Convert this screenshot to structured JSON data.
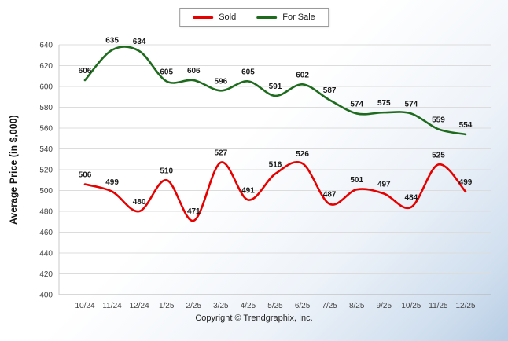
{
  "page": {
    "copyright": "Copyright © Trendgraphix, Inc."
  },
  "legend": {
    "items": [
      {
        "label": "Sold",
        "color": "#e60000"
      },
      {
        "label": "For Sale",
        "color": "#1e6b1e"
      }
    ]
  },
  "chart_data": {
    "type": "line",
    "title": "",
    "xlabel": "",
    "ylabel": "Average Price (in $,000)",
    "categories": [
      "10/24",
      "11/24",
      "12/24",
      "1/25",
      "2/25",
      "3/25",
      "4/25",
      "5/25",
      "6/25",
      "7/25",
      "8/25",
      "9/25",
      "10/25",
      "11/25",
      "12/25"
    ],
    "series": [
      {
        "name": "Sold",
        "color": "#e60000",
        "values": [
          506,
          499,
          480,
          510,
          471,
          527,
          491,
          516,
          526,
          487,
          501,
          497,
          484,
          525,
          499
        ]
      },
      {
        "name": "For Sale",
        "color": "#1e6b1e",
        "values": [
          606,
          635,
          634,
          605,
          606,
          596,
          605,
          591,
          602,
          587,
          574,
          575,
          574,
          559,
          554
        ]
      }
    ],
    "ylim": [
      400,
      640
    ],
    "ytick_step": 20,
    "grid": true,
    "legend_position": "top"
  }
}
